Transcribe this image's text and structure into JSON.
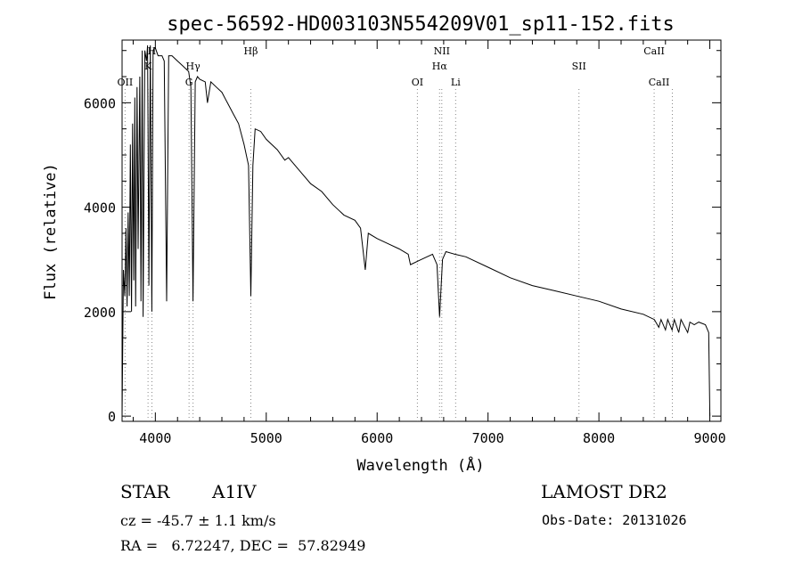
{
  "chart_data": {
    "type": "line",
    "title": "spec-56592-HD003103N554209V01_sp11-152.fits",
    "xlabel": "Wavelength (Å)",
    "ylabel": "Flux (relative)",
    "xlim": [
      3700,
      9100
    ],
    "ylim": [
      -100,
      7200
    ],
    "x_ticks": [
      4000,
      5000,
      6000,
      7000,
      8000,
      9000
    ],
    "y_ticks": [
      0,
      2000,
      4000,
      6000
    ],
    "grid": false,
    "line_color": "#000000",
    "marker_color": "#888888",
    "series": [
      {
        "x": [
          3700,
          3712,
          3725,
          3735,
          3745,
          3755,
          3765,
          3775,
          3785,
          3795,
          3805,
          3815,
          3822,
          3835,
          3845,
          3860,
          3870,
          3882,
          3890,
          3905,
          3920,
          3930,
          3942,
          3955,
          3968,
          3980,
          3990,
          4000,
          4025,
          4060,
          4080,
          4102,
          4120,
          4150,
          4200,
          4250,
          4300,
          4320,
          4340,
          4360,
          4380,
          4400,
          4450,
          4470,
          4500,
          4550,
          4600,
          4650,
          4700,
          4750,
          4800,
          4840,
          4861,
          4880,
          4900,
          4950,
          5000,
          5100,
          5167,
          5200,
          5300,
          5400,
          5500,
          5600,
          5700,
          5800,
          5850,
          5893,
          5920,
          6000,
          6100,
          6200,
          6280,
          6300,
          6400,
          6500,
          6540,
          6563,
          6590,
          6620,
          6700,
          6800,
          7000,
          7200,
          7400,
          7600,
          7800,
          8000,
          8200,
          8400,
          8500,
          8540,
          8560,
          8600,
          8620,
          8660,
          8680,
          8720,
          8740,
          8800,
          8820,
          8860,
          8900,
          8960,
          8990,
          9000
        ],
        "y": [
          0,
          2800,
          2300,
          3600,
          2100,
          3900,
          2300,
          5200,
          2000,
          5600,
          2600,
          6100,
          2100,
          6300,
          3200,
          6500,
          2200,
          7000,
          1900,
          7000,
          6800,
          7100,
          2500,
          7100,
          2000,
          7000,
          7050,
          7050,
          6900,
          6900,
          6800,
          2200,
          6900,
          6900,
          6800,
          6700,
          6600,
          6300,
          2200,
          6400,
          6500,
          6450,
          6400,
          6000,
          6400,
          6300,
          6200,
          6000,
          5800,
          5600,
          5200,
          4800,
          2300,
          4800,
          5500,
          5450,
          5300,
          5100,
          4900,
          4950,
          4700,
          4450,
          4300,
          4050,
          3850,
          3750,
          3600,
          2800,
          3500,
          3400,
          3300,
          3200,
          3100,
          2900,
          3000,
          3100,
          2900,
          1900,
          3000,
          3150,
          3100,
          3050,
          2850,
          2650,
          2500,
          2400,
          2300,
          2200,
          2050,
          1950,
          1850,
          1700,
          1850,
          1650,
          1850,
          1650,
          1850,
          1600,
          1850,
          1600,
          1800,
          1750,
          1800,
          1750,
          1600,
          0
        ]
      }
    ],
    "line_markers": [
      {
        "label": "OII",
        "wavelength": 3727,
        "row": 3,
        "line": true
      },
      {
        "label": "K",
        "wavelength": 3934,
        "row": 1,
        "line": true
      },
      {
        "label": "H",
        "wavelength": 3969,
        "row": 0,
        "line": true
      },
      {
        "label": "Hγ",
        "wavelength": 4340,
        "row": 1,
        "line": true
      },
      {
        "label": "G",
        "wavelength": 4304,
        "row": 2,
        "line": true
      },
      {
        "label": "Hβ",
        "wavelength": 4861,
        "row": 0,
        "line": true
      },
      {
        "label": "OI",
        "wavelength": 6363,
        "row": 3,
        "line": true
      },
      {
        "label": "NII",
        "wavelength": 6583,
        "row": 0,
        "line": true
      },
      {
        "label": "Hα",
        "wavelength": 6563,
        "row": 1,
        "line": true
      },
      {
        "label": "Li",
        "wavelength": 6708,
        "row": 3,
        "line": true
      },
      {
        "label": "SII",
        "wavelength": 7820,
        "row": 1,
        "line": true
      },
      {
        "label": "CaII",
        "wavelength": 8498,
        "row": 0,
        "line": true
      },
      {
        "label": "CaII",
        "wavelength": 8542,
        "row": 3,
        "line": false
      },
      {
        "label": "",
        "wavelength": 8662,
        "row": 3,
        "line": true
      }
    ]
  },
  "info": {
    "star_label": "STAR",
    "spectral_type": "A1IV",
    "survey": "LAMOST DR2",
    "redshift": "cz = -45.7 ± 1.1 km/s",
    "obs_date": "Obs-Date: 20131026",
    "coords": "RA =   6.72247, DEC =  57.82949"
  }
}
